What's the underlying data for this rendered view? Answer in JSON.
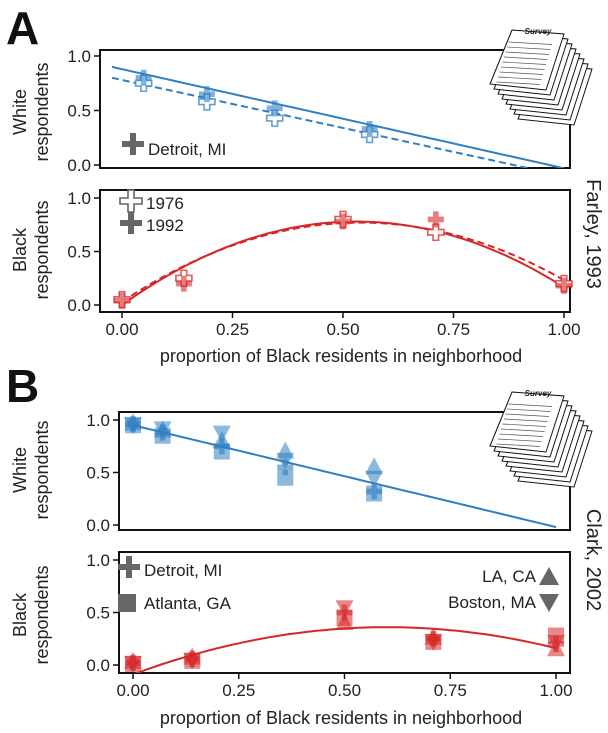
{
  "panels": [
    {
      "letter": "A",
      "side_label": "Farley, 1993",
      "icon_label": "Survey",
      "subplots": [
        {
          "ylabel": "White respondents",
          "yticks": [
            "0.0",
            "0.5",
            "1.0"
          ],
          "legend": [
            "Detroit, MI"
          ]
        },
        {
          "ylabel": "Black respondents",
          "yticks": [
            "0.0",
            "0.5",
            "1.0"
          ],
          "legend": [
            "1976",
            "1992"
          ]
        }
      ],
      "xticks": [
        "0.00",
        "0.25",
        "0.50",
        "0.75",
        "1.00"
      ],
      "xlabel": "proportion of Black residents in neighborhood"
    },
    {
      "letter": "B",
      "side_label": "Clark, 2002",
      "icon_label": "Survey",
      "subplots": [
        {
          "ylabel": "White respondents",
          "yticks": [
            "0.0",
            "0.5",
            "1.0"
          ],
          "legend": []
        },
        {
          "ylabel": "Black respondents",
          "yticks": [
            "0.0",
            "0.5",
            "1.0"
          ],
          "legend": [
            "Detroit, MI",
            "Atlanta, GA",
            "LA, CA",
            "Boston, MA"
          ]
        }
      ],
      "xticks": [
        "0.00",
        "0.25",
        "0.50",
        "0.75",
        "1.00"
      ],
      "xlabel": "proportion of Black residents in neighborhood"
    }
  ],
  "colors": {
    "white_series": "#2f7fc1",
    "black_series": "#d62728",
    "axis": "#111111",
    "text": "#222222"
  },
  "chart_data": [
    {
      "type": "scatter",
      "panel": "A",
      "title": "",
      "xlabel": "proportion of Black residents in neighborhood",
      "ylabel": "White respondents",
      "xlim": [
        0,
        1
      ],
      "ylim": [
        0,
        1
      ],
      "series": [
        {
          "name": "1976",
          "marker": "open-plus",
          "x": [
            0.07,
            0.21,
            0.36,
            0.57
          ],
          "y": [
            0.75,
            0.58,
            0.43,
            0.28
          ]
        },
        {
          "name": "1992",
          "marker": "filled-plus",
          "x": [
            0.07,
            0.21,
            0.36,
            0.57
          ],
          "y": [
            0.8,
            0.65,
            0.52,
            0.33
          ]
        }
      ],
      "fits": [
        {
          "series": "1992",
          "style": "solid",
          "intercept": 0.9,
          "slope": -0.93
        },
        {
          "series": "1976",
          "style": "dashed",
          "intercept": 0.8,
          "slope": -0.9
        }
      ]
    },
    {
      "type": "scatter",
      "panel": "A",
      "title": "",
      "xlabel": "proportion of Black residents in neighborhood",
      "ylabel": "Black respondents",
      "xlim": [
        0,
        1
      ],
      "ylim": [
        0,
        1
      ],
      "series": [
        {
          "name": "1976",
          "marker": "open-plus",
          "x": [
            0.0,
            0.14,
            0.5,
            0.71,
            1.0
          ],
          "y": [
            0.05,
            0.25,
            0.8,
            0.68,
            0.2
          ]
        },
        {
          "name": "1992",
          "marker": "filled-plus",
          "x": [
            0.0,
            0.14,
            0.5,
            0.71,
            1.0
          ],
          "y": [
            0.04,
            0.2,
            0.78,
            0.8,
            0.18
          ]
        }
      ],
      "fits": [
        {
          "series": "1992",
          "style": "solid",
          "vertex_x": 0.53,
          "vertex_y": 0.78,
          "intercept": 0.0
        },
        {
          "series": "1976",
          "style": "dashed",
          "vertex_x": 0.54,
          "vertex_y": 0.77,
          "intercept": 0.03
        }
      ]
    },
    {
      "type": "scatter",
      "panel": "B",
      "title": "",
      "xlabel": "proportion of Black residents in neighborhood",
      "ylabel": "White respondents",
      "xlim": [
        0,
        1
      ],
      "ylim": [
        0,
        1
      ],
      "series": [
        {
          "name": "Detroit, MI",
          "marker": "plus",
          "x": [
            0.0,
            0.07,
            0.21,
            0.36,
            0.57
          ],
          "y": [
            0.96,
            0.88,
            0.75,
            0.55,
            0.32
          ]
        },
        {
          "name": "Atlanta, GA",
          "marker": "square",
          "x": [
            0.0,
            0.07,
            0.21,
            0.36,
            0.57
          ],
          "y": [
            0.95,
            0.85,
            0.7,
            0.45,
            0.3
          ]
        },
        {
          "name": "LA, CA",
          "marker": "triangle-up",
          "x": [
            0.0,
            0.07,
            0.21,
            0.36,
            0.57
          ],
          "y": [
            0.97,
            0.9,
            0.8,
            0.7,
            0.55
          ]
        },
        {
          "name": "Boston, MA",
          "marker": "triangle-down",
          "x": [
            0.0,
            0.07,
            0.21,
            0.36,
            0.57
          ],
          "y": [
            0.96,
            0.92,
            0.88,
            0.62,
            0.45
          ]
        }
      ],
      "fits": [
        {
          "style": "solid",
          "intercept": 0.95,
          "slope": -0.97
        }
      ]
    },
    {
      "type": "scatter",
      "panel": "B",
      "title": "",
      "xlabel": "proportion of Black residents in neighborhood",
      "ylabel": "Black respondents",
      "xlim": [
        0,
        1
      ],
      "ylim": [
        0,
        1
      ],
      "series": [
        {
          "name": "Detroit, MI",
          "marker": "plus",
          "x": [
            0.0,
            0.14,
            0.5,
            0.71,
            1.0
          ],
          "y": [
            0.02,
            0.06,
            0.5,
            0.25,
            0.2
          ]
        },
        {
          "name": "Atlanta, GA",
          "marker": "square",
          "x": [
            0.0,
            0.14,
            0.5,
            0.71,
            1.0
          ],
          "y": [
            0.01,
            0.04,
            0.45,
            0.22,
            0.28
          ]
        },
        {
          "name": "LA, CA",
          "marker": "triangle-up",
          "x": [
            0.0,
            0.14,
            0.5,
            0.71,
            1.0
          ],
          "y": [
            0.03,
            0.07,
            0.4,
            0.26,
            0.15
          ]
        },
        {
          "name": "Boston, MA",
          "marker": "triangle-down",
          "x": [
            0.0,
            0.14,
            0.5,
            0.71,
            1.0
          ],
          "y": [
            0.02,
            0.05,
            0.55,
            0.23,
            0.22
          ]
        }
      ],
      "fits": [
        {
          "style": "solid",
          "vertex_x": 0.6,
          "vertex_y": 0.36,
          "intercept": -0.09
        }
      ]
    }
  ]
}
